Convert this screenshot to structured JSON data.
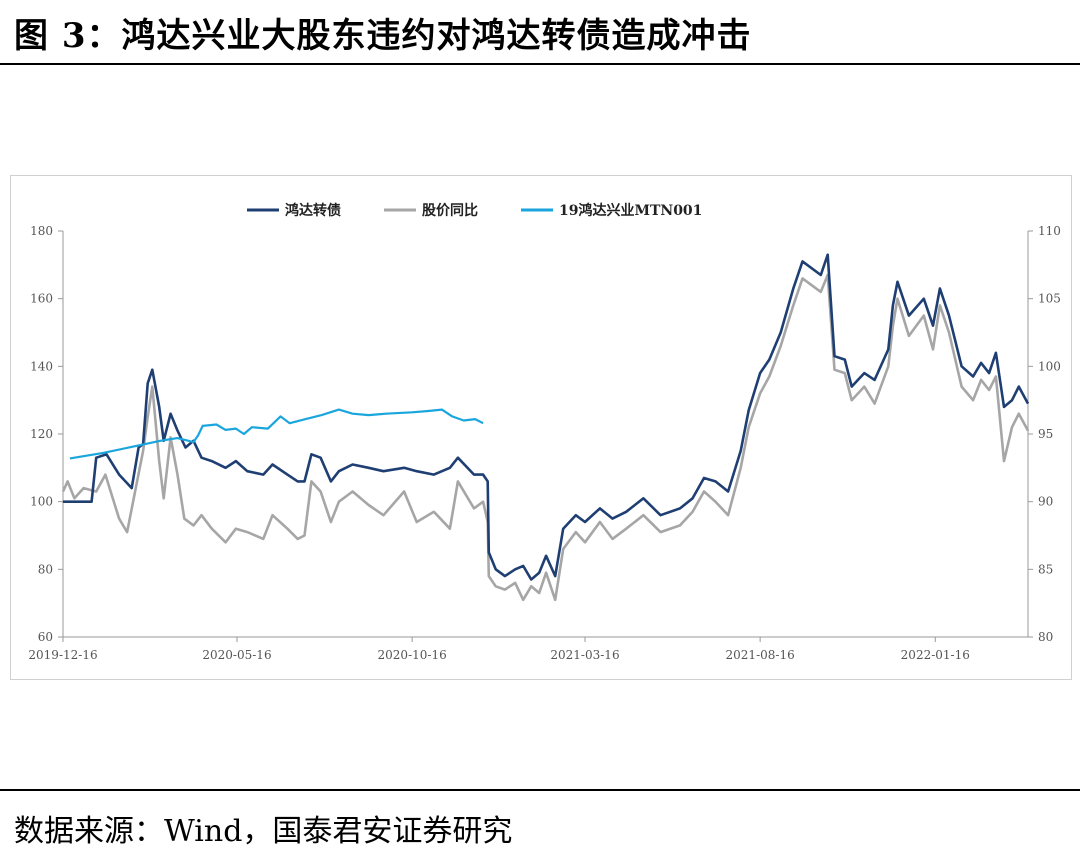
{
  "figure": {
    "title": "图 3：鸿达兴业大股东违约对鸿达转债造成冲击",
    "source": "数据来源：Wind，国泰君安证券研究"
  },
  "chart_data": {
    "type": "line",
    "title": "",
    "xlabel": "",
    "ylabel": "",
    "x_ticks": [
      "2019-12-16",
      "2020-05-16",
      "2020-10-16",
      "2021-03-16",
      "2021-08-16",
      "2022-01-16"
    ],
    "x_range": [
      "2019-12-16",
      "2022-04-07"
    ],
    "y_left": {
      "range": [
        60,
        180
      ],
      "ticks": [
        60,
        80,
        100,
        120,
        140,
        160,
        180
      ]
    },
    "y_right": {
      "range": [
        80,
        110
      ],
      "ticks": [
        80,
        85,
        90,
        95,
        100,
        105,
        110
      ]
    },
    "legend_position": "top-center",
    "grid": false,
    "series": [
      {
        "name": "鸿达转债",
        "axis": "left",
        "color": "#1f3f73",
        "points": [
          [
            "2019-12-16",
            100
          ],
          [
            "2020-01-10",
            100
          ],
          [
            "2020-01-14",
            113
          ],
          [
            "2020-01-23",
            114
          ],
          [
            "2020-02-03",
            108
          ],
          [
            "2020-02-14",
            104
          ],
          [
            "2020-02-20",
            116
          ],
          [
            "2020-02-24",
            117
          ],
          [
            "2020-02-28",
            135
          ],
          [
            "2020-03-03",
            139
          ],
          [
            "2020-03-09",
            128
          ],
          [
            "2020-03-13",
            118
          ],
          [
            "2020-03-19",
            126
          ],
          [
            "2020-03-25",
            121
          ],
          [
            "2020-04-01",
            116
          ],
          [
            "2020-04-08",
            118
          ],
          [
            "2020-04-15",
            113
          ],
          [
            "2020-04-24",
            112
          ],
          [
            "2020-05-06",
            110
          ],
          [
            "2020-05-15",
            112
          ],
          [
            "2020-05-25",
            109
          ],
          [
            "2020-06-08",
            108
          ],
          [
            "2020-06-16",
            111
          ],
          [
            "2020-06-29",
            108
          ],
          [
            "2020-07-08",
            106
          ],
          [
            "2020-07-14",
            106
          ],
          [
            "2020-07-20",
            114
          ],
          [
            "2020-07-28",
            113
          ],
          [
            "2020-08-06",
            106
          ],
          [
            "2020-08-13",
            109
          ],
          [
            "2020-08-25",
            111
          ],
          [
            "2020-09-08",
            110
          ],
          [
            "2020-09-21",
            109
          ],
          [
            "2020-10-09",
            110
          ],
          [
            "2020-10-20",
            109
          ],
          [
            "2020-11-04",
            108
          ],
          [
            "2020-11-18",
            110
          ],
          [
            "2020-11-25",
            113
          ],
          [
            "2020-12-09",
            108
          ],
          [
            "2020-12-17",
            108
          ],
          [
            "2020-12-21",
            106
          ],
          [
            "2020-12-22",
            85
          ],
          [
            "2020-12-28",
            80
          ],
          [
            "2021-01-05",
            78
          ],
          [
            "2021-01-14",
            80
          ],
          [
            "2021-01-21",
            81
          ],
          [
            "2021-01-28",
            77
          ],
          [
            "2021-02-04",
            79
          ],
          [
            "2021-02-10",
            84
          ],
          [
            "2021-02-18",
            78
          ],
          [
            "2021-02-25",
            92
          ],
          [
            "2021-03-08",
            96
          ],
          [
            "2021-03-16",
            94
          ],
          [
            "2021-03-29",
            98
          ],
          [
            "2021-04-09",
            95
          ],
          [
            "2021-04-21",
            97
          ],
          [
            "2021-05-06",
            101
          ],
          [
            "2021-05-21",
            96
          ],
          [
            "2021-06-07",
            98
          ],
          [
            "2021-06-18",
            101
          ],
          [
            "2021-06-28",
            107
          ],
          [
            "2021-07-08",
            106
          ],
          [
            "2021-07-19",
            103
          ],
          [
            "2021-07-30",
            115
          ],
          [
            "2021-08-06",
            127
          ],
          [
            "2021-08-16",
            138
          ],
          [
            "2021-08-24",
            142
          ],
          [
            "2021-09-03",
            150
          ],
          [
            "2021-09-14",
            163
          ],
          [
            "2021-09-22",
            171
          ],
          [
            "2021-10-08",
            167
          ],
          [
            "2021-10-14",
            173
          ],
          [
            "2021-10-20",
            143
          ],
          [
            "2021-10-29",
            142
          ],
          [
            "2021-11-04",
            134
          ],
          [
            "2021-11-15",
            138
          ],
          [
            "2021-11-24",
            136
          ],
          [
            "2021-12-06",
            145
          ],
          [
            "2021-12-10",
            158
          ],
          [
            "2021-12-14",
            165
          ],
          [
            "2021-12-24",
            155
          ],
          [
            "2022-01-06",
            160
          ],
          [
            "2022-01-14",
            152
          ],
          [
            "2022-01-20",
            163
          ],
          [
            "2022-01-28",
            155
          ],
          [
            "2022-02-08",
            140
          ],
          [
            "2022-02-18",
            137
          ],
          [
            "2022-02-25",
            141
          ],
          [
            "2022-03-04",
            138
          ],
          [
            "2022-03-10",
            144
          ],
          [
            "2022-03-17",
            128
          ],
          [
            "2022-03-24",
            130
          ],
          [
            "2022-03-30",
            134
          ],
          [
            "2022-04-07",
            129
          ]
        ]
      },
      {
        "name": "股价同比",
        "axis": "left",
        "color": "#a6a6a6",
        "points": [
          [
            "2019-12-16",
            103
          ],
          [
            "2019-12-20",
            106
          ],
          [
            "2019-12-26",
            101
          ],
          [
            "2020-01-03",
            104
          ],
          [
            "2020-01-14",
            103
          ],
          [
            "2020-01-22",
            108
          ],
          [
            "2020-02-03",
            95
          ],
          [
            "2020-02-10",
            91
          ],
          [
            "2020-02-17",
            103
          ],
          [
            "2020-02-24",
            115
          ],
          [
            "2020-02-28",
            125
          ],
          [
            "2020-03-03",
            134
          ],
          [
            "2020-03-09",
            112
          ],
          [
            "2020-03-13",
            101
          ],
          [
            "2020-03-19",
            119
          ],
          [
            "2020-03-25",
            108
          ],
          [
            "2020-03-31",
            95
          ],
          [
            "2020-04-08",
            93
          ],
          [
            "2020-04-15",
            96
          ],
          [
            "2020-04-24",
            92
          ],
          [
            "2020-05-06",
            88
          ],
          [
            "2020-05-15",
            92
          ],
          [
            "2020-05-25",
            91
          ],
          [
            "2020-06-08",
            89
          ],
          [
            "2020-06-16",
            96
          ],
          [
            "2020-06-29",
            92
          ],
          [
            "2020-07-08",
            89
          ],
          [
            "2020-07-14",
            90
          ],
          [
            "2020-07-20",
            106
          ],
          [
            "2020-07-28",
            103
          ],
          [
            "2020-08-06",
            94
          ],
          [
            "2020-08-13",
            100
          ],
          [
            "2020-08-25",
            103
          ],
          [
            "2020-09-08",
            99
          ],
          [
            "2020-09-21",
            96
          ],
          [
            "2020-10-09",
            103
          ],
          [
            "2020-10-20",
            94
          ],
          [
            "2020-11-04",
            97
          ],
          [
            "2020-11-18",
            92
          ],
          [
            "2020-11-25",
            106
          ],
          [
            "2020-12-09",
            98
          ],
          [
            "2020-12-17",
            100
          ],
          [
            "2020-12-21",
            94
          ],
          [
            "2020-12-22",
            78
          ],
          [
            "2020-12-28",
            75
          ],
          [
            "2021-01-05",
            74
          ],
          [
            "2021-01-14",
            76
          ],
          [
            "2021-01-21",
            71
          ],
          [
            "2021-01-28",
            75
          ],
          [
            "2021-02-04",
            73
          ],
          [
            "2021-02-10",
            79
          ],
          [
            "2021-02-18",
            71
          ],
          [
            "2021-02-25",
            86
          ],
          [
            "2021-03-08",
            91
          ],
          [
            "2021-03-16",
            88
          ],
          [
            "2021-03-29",
            94
          ],
          [
            "2021-04-09",
            89
          ],
          [
            "2021-04-21",
            92
          ],
          [
            "2021-05-06",
            96
          ],
          [
            "2021-05-21",
            91
          ],
          [
            "2021-06-07",
            93
          ],
          [
            "2021-06-18",
            97
          ],
          [
            "2021-06-28",
            103
          ],
          [
            "2021-07-08",
            100
          ],
          [
            "2021-07-19",
            96
          ],
          [
            "2021-07-30",
            110
          ],
          [
            "2021-08-06",
            122
          ],
          [
            "2021-08-16",
            132
          ],
          [
            "2021-08-24",
            137
          ],
          [
            "2021-09-03",
            146
          ],
          [
            "2021-09-14",
            158
          ],
          [
            "2021-09-22",
            166
          ],
          [
            "2021-10-08",
            162
          ],
          [
            "2021-10-14",
            167
          ],
          [
            "2021-10-20",
            139
          ],
          [
            "2021-10-29",
            138
          ],
          [
            "2021-11-04",
            130
          ],
          [
            "2021-11-15",
            134
          ],
          [
            "2021-11-24",
            129
          ],
          [
            "2021-12-06",
            140
          ],
          [
            "2021-12-10",
            152
          ],
          [
            "2021-12-14",
            160
          ],
          [
            "2021-12-24",
            149
          ],
          [
            "2022-01-06",
            155
          ],
          [
            "2022-01-14",
            145
          ],
          [
            "2022-01-20",
            158
          ],
          [
            "2022-01-28",
            150
          ],
          [
            "2022-02-08",
            134
          ],
          [
            "2022-02-18",
            130
          ],
          [
            "2022-02-25",
            136
          ],
          [
            "2022-03-04",
            133
          ],
          [
            "2022-03-10",
            137
          ],
          [
            "2022-03-17",
            112
          ],
          [
            "2022-03-24",
            122
          ],
          [
            "2022-03-30",
            126
          ],
          [
            "2022-04-07",
            121
          ]
        ]
      },
      {
        "name": "19鸿达兴业MTN001",
        "axis": "right",
        "color": "#1aa6dd",
        "points": [
          [
            "2019-12-22",
            93.2
          ],
          [
            "2020-01-20",
            93.6
          ],
          [
            "2020-02-17",
            94.1
          ],
          [
            "2020-03-10",
            94.5
          ],
          [
            "2020-03-25",
            94.7
          ],
          [
            "2020-04-08",
            94.4
          ],
          [
            "2020-04-12",
            94.9
          ],
          [
            "2020-04-16",
            95.6
          ],
          [
            "2020-04-28",
            95.7
          ],
          [
            "2020-05-06",
            95.3
          ],
          [
            "2020-05-15",
            95.4
          ],
          [
            "2020-05-22",
            95.0
          ],
          [
            "2020-05-29",
            95.5
          ],
          [
            "2020-06-12",
            95.4
          ],
          [
            "2020-06-23",
            96.3
          ],
          [
            "2020-07-01",
            95.8
          ],
          [
            "2020-07-15",
            96.1
          ],
          [
            "2020-07-29",
            96.4
          ],
          [
            "2020-08-13",
            96.8
          ],
          [
            "2020-08-25",
            96.5
          ],
          [
            "2020-09-08",
            96.4
          ],
          [
            "2020-09-23",
            96.5
          ],
          [
            "2020-10-16",
            96.6
          ],
          [
            "2020-10-30",
            96.7
          ],
          [
            "2020-11-11",
            96.8
          ],
          [
            "2020-11-20",
            96.3
          ],
          [
            "2020-11-30",
            96.0
          ],
          [
            "2020-12-10",
            96.1
          ],
          [
            "2020-12-17",
            95.8
          ]
        ]
      }
    ]
  }
}
